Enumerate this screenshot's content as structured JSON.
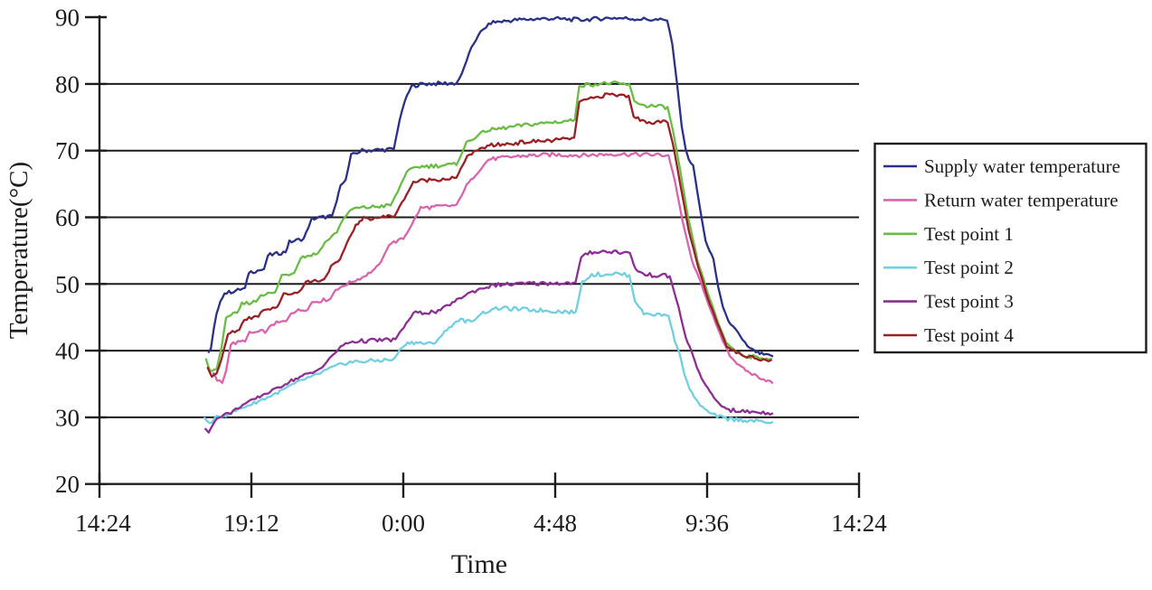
{
  "figure": {
    "y_axis_title": "Temperature(°C)",
    "x_axis_title": "Time",
    "y_tick_labels": [
      "90",
      "80",
      "70",
      "60",
      "50",
      "40",
      "30",
      "20"
    ],
    "x_tick_labels": [
      "14:24",
      "19:12",
      "0:00",
      "4:48",
      "9:36",
      "14:24"
    ]
  },
  "chart_data": {
    "type": "line",
    "title": "",
    "xlabel": "Time",
    "ylabel": "Temperature(°C)",
    "x_tick_labels": [
      "14:24",
      "19:12",
      "0:00",
      "4:48",
      "9:36",
      "14:24"
    ],
    "x_unit": "clock time over 24 h (hours measured from the 14:24 axis origin)",
    "x_range_hours": [
      0,
      24
    ],
    "ylim": [
      20,
      90
    ],
    "y_gridlines": [
      30,
      40,
      50,
      60,
      70,
      80
    ],
    "grid": "horizontal-only",
    "legend_position": "outside-right",
    "axis_color": "#1c1c1c",
    "series": [
      {
        "name": "Supply water temperature",
        "color": "#2a3186",
        "points": [
          [
            3.45,
            39.8
          ],
          [
            3.52,
            40.3
          ],
          [
            3.62,
            43.5
          ],
          [
            3.7,
            45.5
          ],
          [
            3.82,
            47.5
          ],
          [
            3.95,
            48.6
          ],
          [
            4.3,
            49.0
          ],
          [
            4.6,
            49.4
          ],
          [
            4.72,
            51.8
          ],
          [
            5.2,
            52.2
          ],
          [
            5.32,
            54.3
          ],
          [
            5.88,
            54.8
          ],
          [
            6.0,
            56.3
          ],
          [
            6.45,
            56.8
          ],
          [
            6.6,
            58.5
          ],
          [
            6.72,
            59.8
          ],
          [
            7.35,
            60.2
          ],
          [
            7.5,
            62.5
          ],
          [
            7.62,
            65.0
          ],
          [
            7.78,
            65.6
          ],
          [
            7.95,
            69.3
          ],
          [
            8.3,
            70.0
          ],
          [
            9.3,
            70.2
          ],
          [
            9.48,
            74.5
          ],
          [
            9.65,
            77.5
          ],
          [
            9.86,
            79.6
          ],
          [
            10.2,
            80.0
          ],
          [
            11.28,
            80.1
          ],
          [
            11.45,
            81.5
          ],
          [
            11.75,
            85.5
          ],
          [
            12.05,
            87.8
          ],
          [
            12.37,
            89.2
          ],
          [
            13.2,
            89.6
          ],
          [
            14.2,
            89.8
          ],
          [
            15.2,
            89.6
          ],
          [
            16.2,
            89.9
          ],
          [
            17.2,
            89.7
          ],
          [
            17.94,
            89.5
          ],
          [
            18.1,
            86.0
          ],
          [
            18.25,
            80.0
          ],
          [
            18.4,
            73.5
          ],
          [
            18.52,
            70.3
          ],
          [
            18.62,
            68.6
          ],
          [
            18.76,
            67.8
          ],
          [
            18.95,
            62.0
          ],
          [
            19.15,
            56.5
          ],
          [
            19.28,
            54.9
          ],
          [
            19.4,
            53.8
          ],
          [
            19.55,
            49.5
          ],
          [
            19.7,
            46.5
          ],
          [
            19.88,
            44.3
          ],
          [
            20.1,
            43.3
          ],
          [
            20.32,
            41.6
          ],
          [
            20.55,
            40.3
          ],
          [
            20.8,
            39.7
          ],
          [
            21.05,
            39.3
          ],
          [
            21.26,
            39.2
          ]
        ]
      },
      {
        "name": "Return water temperature",
        "color": "#d964ad",
        "points": [
          [
            3.6,
            36.6
          ],
          [
            3.72,
            35.6
          ],
          [
            3.88,
            35.2
          ],
          [
            4.0,
            37.0
          ],
          [
            4.15,
            41.0
          ],
          [
            4.6,
            41.5
          ],
          [
            4.74,
            42.6
          ],
          [
            5.3,
            43.0
          ],
          [
            5.44,
            44.0
          ],
          [
            5.9,
            44.4
          ],
          [
            6.06,
            45.8
          ],
          [
            6.58,
            46.3
          ],
          [
            6.72,
            47.3
          ],
          [
            7.3,
            47.8
          ],
          [
            7.46,
            49.2
          ],
          [
            7.9,
            50.2
          ],
          [
            8.3,
            51.0
          ],
          [
            8.7,
            52.2
          ],
          [
            8.95,
            53.8
          ],
          [
            9.15,
            56.0
          ],
          [
            9.6,
            56.8
          ],
          [
            9.78,
            58.2
          ],
          [
            10.15,
            61.4
          ],
          [
            11.28,
            61.8
          ],
          [
            11.6,
            64.8
          ],
          [
            12.3,
            68.7
          ],
          [
            13.3,
            69.2
          ],
          [
            14.3,
            69.4
          ],
          [
            15.3,
            69.3
          ],
          [
            16.3,
            69.5
          ],
          [
            17.3,
            69.4
          ],
          [
            17.98,
            69.3
          ],
          [
            18.18,
            65.5
          ],
          [
            18.42,
            59.5
          ],
          [
            18.72,
            53.5
          ],
          [
            19.02,
            50.0
          ],
          [
            19.32,
            46.0
          ],
          [
            19.62,
            42.3
          ],
          [
            19.92,
            39.3
          ],
          [
            20.22,
            37.7
          ],
          [
            20.55,
            36.7
          ],
          [
            20.92,
            35.9
          ],
          [
            21.26,
            35.2
          ]
        ]
      },
      {
        "name": "Test point 1",
        "color": "#6abd44",
        "points": [
          [
            3.37,
            38.7
          ],
          [
            3.5,
            36.9
          ],
          [
            3.7,
            37.3
          ],
          [
            3.86,
            40.5
          ],
          [
            4.0,
            45.2
          ],
          [
            4.35,
            45.6
          ],
          [
            4.5,
            47.0
          ],
          [
            4.95,
            47.4
          ],
          [
            5.1,
            48.4
          ],
          [
            5.55,
            48.7
          ],
          [
            5.76,
            51.3
          ],
          [
            6.15,
            51.7
          ],
          [
            6.36,
            54.0
          ],
          [
            6.9,
            54.6
          ],
          [
            7.12,
            56.2
          ],
          [
            7.5,
            57.8
          ],
          [
            7.7,
            59.8
          ],
          [
            8.0,
            61.3
          ],
          [
            9.2,
            61.8
          ],
          [
            9.42,
            63.8
          ],
          [
            9.7,
            66.8
          ],
          [
            10.05,
            67.6
          ],
          [
            11.28,
            67.9
          ],
          [
            11.6,
            71.2
          ],
          [
            12.2,
            73.0
          ],
          [
            13.4,
            73.8
          ],
          [
            14.4,
            74.3
          ],
          [
            15.02,
            74.6
          ],
          [
            15.16,
            79.8
          ],
          [
            16.1,
            80.1
          ],
          [
            16.74,
            79.9
          ],
          [
            16.9,
            77.5
          ],
          [
            17.15,
            76.8
          ],
          [
            17.95,
            76.5
          ],
          [
            18.12,
            73.0
          ],
          [
            18.35,
            67.0
          ],
          [
            18.6,
            60.0
          ],
          [
            18.9,
            53.5
          ],
          [
            19.2,
            49.0
          ],
          [
            19.5,
            44.8
          ],
          [
            19.8,
            41.3
          ],
          [
            20.1,
            39.9
          ],
          [
            20.45,
            39.2
          ],
          [
            20.85,
            39.0
          ],
          [
            21.22,
            38.8
          ]
        ]
      },
      {
        "name": "Test point 2",
        "color": "#70cfe0",
        "points": [
          [
            3.32,
            29.8
          ],
          [
            3.48,
            29.1
          ],
          [
            3.7,
            30.0
          ],
          [
            4.0,
            30.4
          ],
          [
            4.3,
            31.0
          ],
          [
            4.62,
            31.7
          ],
          [
            4.95,
            32.3
          ],
          [
            5.3,
            33.0
          ],
          [
            5.7,
            33.9
          ],
          [
            6.1,
            34.9
          ],
          [
            6.5,
            35.8
          ],
          [
            6.82,
            36.3
          ],
          [
            7.12,
            37.0
          ],
          [
            7.52,
            37.8
          ],
          [
            7.92,
            38.3
          ],
          [
            9.3,
            38.7
          ],
          [
            9.55,
            40.6
          ],
          [
            9.8,
            41.3
          ],
          [
            10.55,
            41.0
          ],
          [
            10.9,
            42.8
          ],
          [
            11.35,
            44.7
          ],
          [
            11.75,
            44.3
          ],
          [
            12.05,
            45.6
          ],
          [
            12.6,
            46.4
          ],
          [
            13.8,
            46.1
          ],
          [
            15.05,
            45.8
          ],
          [
            15.25,
            50.3
          ],
          [
            15.55,
            51.4
          ],
          [
            16.3,
            51.6
          ],
          [
            16.74,
            51.3
          ],
          [
            16.92,
            47.5
          ],
          [
            17.2,
            45.6
          ],
          [
            17.98,
            45.3
          ],
          [
            18.18,
            41.5
          ],
          [
            18.32,
            39.8
          ],
          [
            18.48,
            36.5
          ],
          [
            18.65,
            34.3
          ],
          [
            18.85,
            32.6
          ],
          [
            19.12,
            31.2
          ],
          [
            19.45,
            30.3
          ],
          [
            19.85,
            29.8
          ],
          [
            20.4,
            29.6
          ],
          [
            20.9,
            29.4
          ],
          [
            21.26,
            29.3
          ]
        ]
      },
      {
        "name": "Test point 3",
        "color": "#8c2e92",
        "points": [
          [
            3.35,
            28.3
          ],
          [
            3.45,
            27.8
          ],
          [
            3.62,
            29.4
          ],
          [
            3.85,
            30.3
          ],
          [
            4.15,
            30.7
          ],
          [
            4.45,
            31.7
          ],
          [
            4.8,
            32.5
          ],
          [
            5.2,
            33.5
          ],
          [
            5.6,
            34.3
          ],
          [
            6.0,
            35.4
          ],
          [
            6.4,
            36.2
          ],
          [
            6.8,
            36.8
          ],
          [
            7.1,
            37.9
          ],
          [
            7.42,
            39.6
          ],
          [
            7.7,
            40.9
          ],
          [
            8.0,
            41.4
          ],
          [
            9.35,
            41.7
          ],
          [
            9.62,
            43.6
          ],
          [
            9.92,
            45.6
          ],
          [
            10.7,
            45.9
          ],
          [
            11.15,
            47.2
          ],
          [
            11.65,
            48.6
          ],
          [
            12.15,
            49.5
          ],
          [
            12.6,
            49.9
          ],
          [
            13.8,
            50.1
          ],
          [
            15.04,
            50.2
          ],
          [
            15.22,
            54.0
          ],
          [
            15.5,
            54.8
          ],
          [
            16.25,
            54.9
          ],
          [
            16.76,
            54.6
          ],
          [
            16.94,
            52.2
          ],
          [
            17.25,
            51.4
          ],
          [
            18.02,
            51.2
          ],
          [
            18.3,
            46.5
          ],
          [
            18.52,
            42.0
          ],
          [
            18.7,
            40.0
          ],
          [
            18.88,
            37.5
          ],
          [
            19.1,
            35.2
          ],
          [
            19.35,
            33.4
          ],
          [
            19.6,
            31.9
          ],
          [
            19.95,
            31.1
          ],
          [
            20.4,
            30.9
          ],
          [
            20.9,
            30.8
          ],
          [
            21.26,
            30.6
          ]
        ]
      },
      {
        "name": "Test point 4",
        "color": "#992025",
        "points": [
          [
            3.42,
            37.4
          ],
          [
            3.55,
            36.3
          ],
          [
            3.7,
            36.6
          ],
          [
            3.86,
            38.8
          ],
          [
            4.06,
            42.5
          ],
          [
            4.42,
            43.2
          ],
          [
            4.58,
            44.8
          ],
          [
            5.02,
            45.2
          ],
          [
            5.18,
            46.2
          ],
          [
            5.62,
            46.6
          ],
          [
            5.82,
            48.4
          ],
          [
            6.3,
            48.8
          ],
          [
            6.52,
            50.3
          ],
          [
            7.1,
            50.7
          ],
          [
            7.32,
            52.6
          ],
          [
            7.6,
            53.6
          ],
          [
            7.82,
            56.2
          ],
          [
            8.1,
            58.8
          ],
          [
            8.35,
            59.8
          ],
          [
            9.32,
            60.2
          ],
          [
            9.56,
            62.2
          ],
          [
            9.92,
            65.3
          ],
          [
            10.35,
            65.6
          ],
          [
            11.28,
            65.9
          ],
          [
            11.62,
            69.2
          ],
          [
            12.25,
            70.7
          ],
          [
            13.5,
            71.3
          ],
          [
            14.5,
            71.6
          ],
          [
            15.0,
            71.9
          ],
          [
            15.16,
            77.3
          ],
          [
            16.05,
            78.4
          ],
          [
            16.72,
            78.2
          ],
          [
            16.88,
            75.2
          ],
          [
            17.15,
            74.4
          ],
          [
            17.95,
            74.2
          ],
          [
            18.12,
            71.0
          ],
          [
            18.35,
            65.0
          ],
          [
            18.62,
            58.0
          ],
          [
            18.92,
            52.5
          ],
          [
            19.22,
            48.0
          ],
          [
            19.52,
            44.2
          ],
          [
            19.82,
            40.8
          ],
          [
            20.12,
            39.7
          ],
          [
            20.5,
            39.1
          ],
          [
            20.9,
            38.8
          ],
          [
            21.22,
            38.6
          ]
        ]
      }
    ]
  }
}
